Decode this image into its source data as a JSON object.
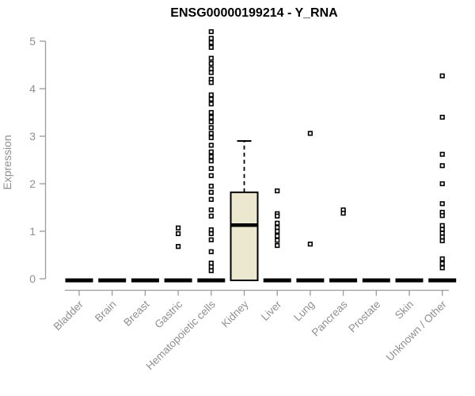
{
  "colors": {
    "background": "#ffffff",
    "axis_text": "#8f8f8f",
    "axis_line": "#9b9b9b",
    "box_fill": "#ECE8CF",
    "data_black": "#000000"
  },
  "chart_data": {
    "type": "boxplot",
    "title": "ENSG00000199214 - Y_RNA",
    "xlabel": "",
    "ylabel": "Expression",
    "ylim": [
      0,
      5.25
    ],
    "yticks": [
      0,
      1,
      2,
      3,
      4,
      5
    ],
    "grid": false,
    "legend": false,
    "categories": [
      "Bladder",
      "Brain",
      "Breast",
      "Gastric",
      "Hematopoietic cells",
      "Kidney",
      "Liver",
      "Lung",
      "Pancreas",
      "Prostate",
      "Skin",
      "Unknown / Other"
    ],
    "boxes": [
      {
        "category": "Bladder",
        "q1": 0,
        "median": 0,
        "q3": 0,
        "whisker_low": 0,
        "whisker_high": 0,
        "outliers": []
      },
      {
        "category": "Brain",
        "q1": 0,
        "median": 0,
        "q3": 0,
        "whisker_low": 0,
        "whisker_high": 0,
        "outliers": []
      },
      {
        "category": "Breast",
        "q1": 0,
        "median": 0,
        "q3": 0,
        "whisker_low": 0,
        "whisker_high": 0,
        "outliers": []
      },
      {
        "category": "Gastric",
        "q1": 0,
        "median": 0,
        "q3": 0,
        "whisker_low": 0,
        "whisker_high": 0,
        "outliers": [
          1.07,
          0.95,
          0.68
        ]
      },
      {
        "category": "Hematopoietic cells",
        "q1": 0,
        "median": 0,
        "q3": 0,
        "whisker_low": 0,
        "whisker_high": 0,
        "outliers": [
          5.2,
          5.06,
          4.97,
          4.87,
          4.64,
          4.53,
          4.42,
          4.34,
          4.2,
          4.13,
          3.87,
          3.78,
          3.68,
          3.5,
          3.4,
          3.3,
          3.18,
          3.06,
          2.97,
          2.81,
          2.67,
          2.57,
          2.48,
          2.32,
          2.17,
          1.95,
          1.82,
          1.67,
          1.45,
          1.32,
          1.03,
          0.95,
          0.82,
          0.57,
          0.33,
          0.25,
          0.17
        ]
      },
      {
        "category": "Kidney",
        "q1": 0,
        "median": 1.13,
        "q3": 1.82,
        "whisker_low": 0,
        "whisker_high": 2.9,
        "outliers": []
      },
      {
        "category": "Liver",
        "q1": 0,
        "median": 0,
        "q3": 0,
        "whisker_low": 0,
        "whisker_high": 0,
        "outliers": [
          1.85,
          1.37,
          1.32,
          1.17,
          1.08,
          1.0,
          0.9,
          0.81,
          0.7
        ]
      },
      {
        "category": "Lung",
        "q1": 0,
        "median": 0,
        "q3": 0,
        "whisker_low": 0,
        "whisker_high": 0,
        "outliers": [
          3.06,
          0.73
        ]
      },
      {
        "category": "Pancreas",
        "q1": 0,
        "median": 0,
        "q3": 0,
        "whisker_low": 0,
        "whisker_high": 0,
        "outliers": [
          1.45,
          1.38
        ]
      },
      {
        "category": "Prostate",
        "q1": 0,
        "median": 0,
        "q3": 0,
        "whisker_low": 0,
        "whisker_high": 0,
        "outliers": []
      },
      {
        "category": "Skin",
        "q1": 0,
        "median": 0,
        "q3": 0,
        "whisker_low": 0,
        "whisker_high": 0,
        "outliers": []
      },
      {
        "category": "Unknown / Other",
        "q1": 0,
        "median": 0,
        "q3": 0,
        "whisker_low": 0,
        "whisker_high": 0,
        "outliers": [
          4.27,
          3.4,
          2.62,
          2.38,
          2.0,
          1.58,
          1.4,
          1.33,
          1.12,
          1.04,
          0.96,
          0.88,
          0.8,
          0.42,
          0.32,
          0.23
        ]
      }
    ]
  }
}
